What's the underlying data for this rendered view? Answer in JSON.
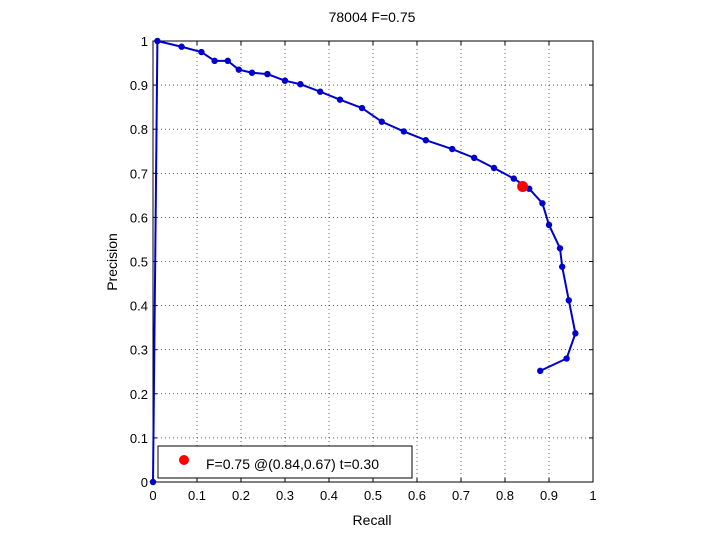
{
  "chart_data": {
    "type": "line",
    "title": "78004 F=0.75",
    "xlabel": "Recall",
    "ylabel": "Precision",
    "xlim": [
      0,
      1
    ],
    "ylim": [
      0,
      1
    ],
    "xticks": [
      0,
      0.1,
      0.2,
      0.3,
      0.4,
      0.5,
      0.6,
      0.7,
      0.8,
      0.9,
      1
    ],
    "yticks": [
      0,
      0.1,
      0.2,
      0.3,
      0.4,
      0.5,
      0.6,
      0.7,
      0.8,
      0.9,
      1
    ],
    "xtick_labels": [
      "0",
      "0.1",
      "0.2",
      "0.3",
      "0.4",
      "0.5",
      "0.6",
      "0.7",
      "0.8",
      "0.9",
      "1"
    ],
    "ytick_labels": [
      "0",
      "0.1",
      "0.2",
      "0.3",
      "0.4",
      "0.5",
      "0.6",
      "0.7",
      "0.8",
      "0.9",
      "1"
    ],
    "grid": true,
    "legend_position": "bottom-left",
    "series": [
      {
        "color": "#0000cc",
        "x": [
          0,
          0.01,
          0.065,
          0.11,
          0.14,
          0.17,
          0.195,
          0.225,
          0.26,
          0.3,
          0.335,
          0.38,
          0.425,
          0.475,
          0.52,
          0.57,
          0.62,
          0.68,
          0.73,
          0.775,
          0.82,
          0.855,
          0.885,
          0.9,
          0.925,
          0.93,
          0.945,
          0.96,
          0.94,
          0.88
        ],
        "y": [
          0,
          1.0,
          0.987,
          0.975,
          0.955,
          0.955,
          0.935,
          0.928,
          0.925,
          0.91,
          0.902,
          0.885,
          0.867,
          0.848,
          0.817,
          0.795,
          0.775,
          0.755,
          0.735,
          0.712,
          0.688,
          0.665,
          0.632,
          0.583,
          0.53,
          0.488,
          0.412,
          0.337,
          0.28,
          0.252
        ]
      }
    ],
    "highlight_point": {
      "x": 0.84,
      "y": 0.67,
      "color": "#ff0000",
      "label": "F=0.75 @(0.84,0.67) t=0.30"
    },
    "legend_entries": [
      "F=0.75 @(0.84,0.67) t=0.30"
    ]
  }
}
